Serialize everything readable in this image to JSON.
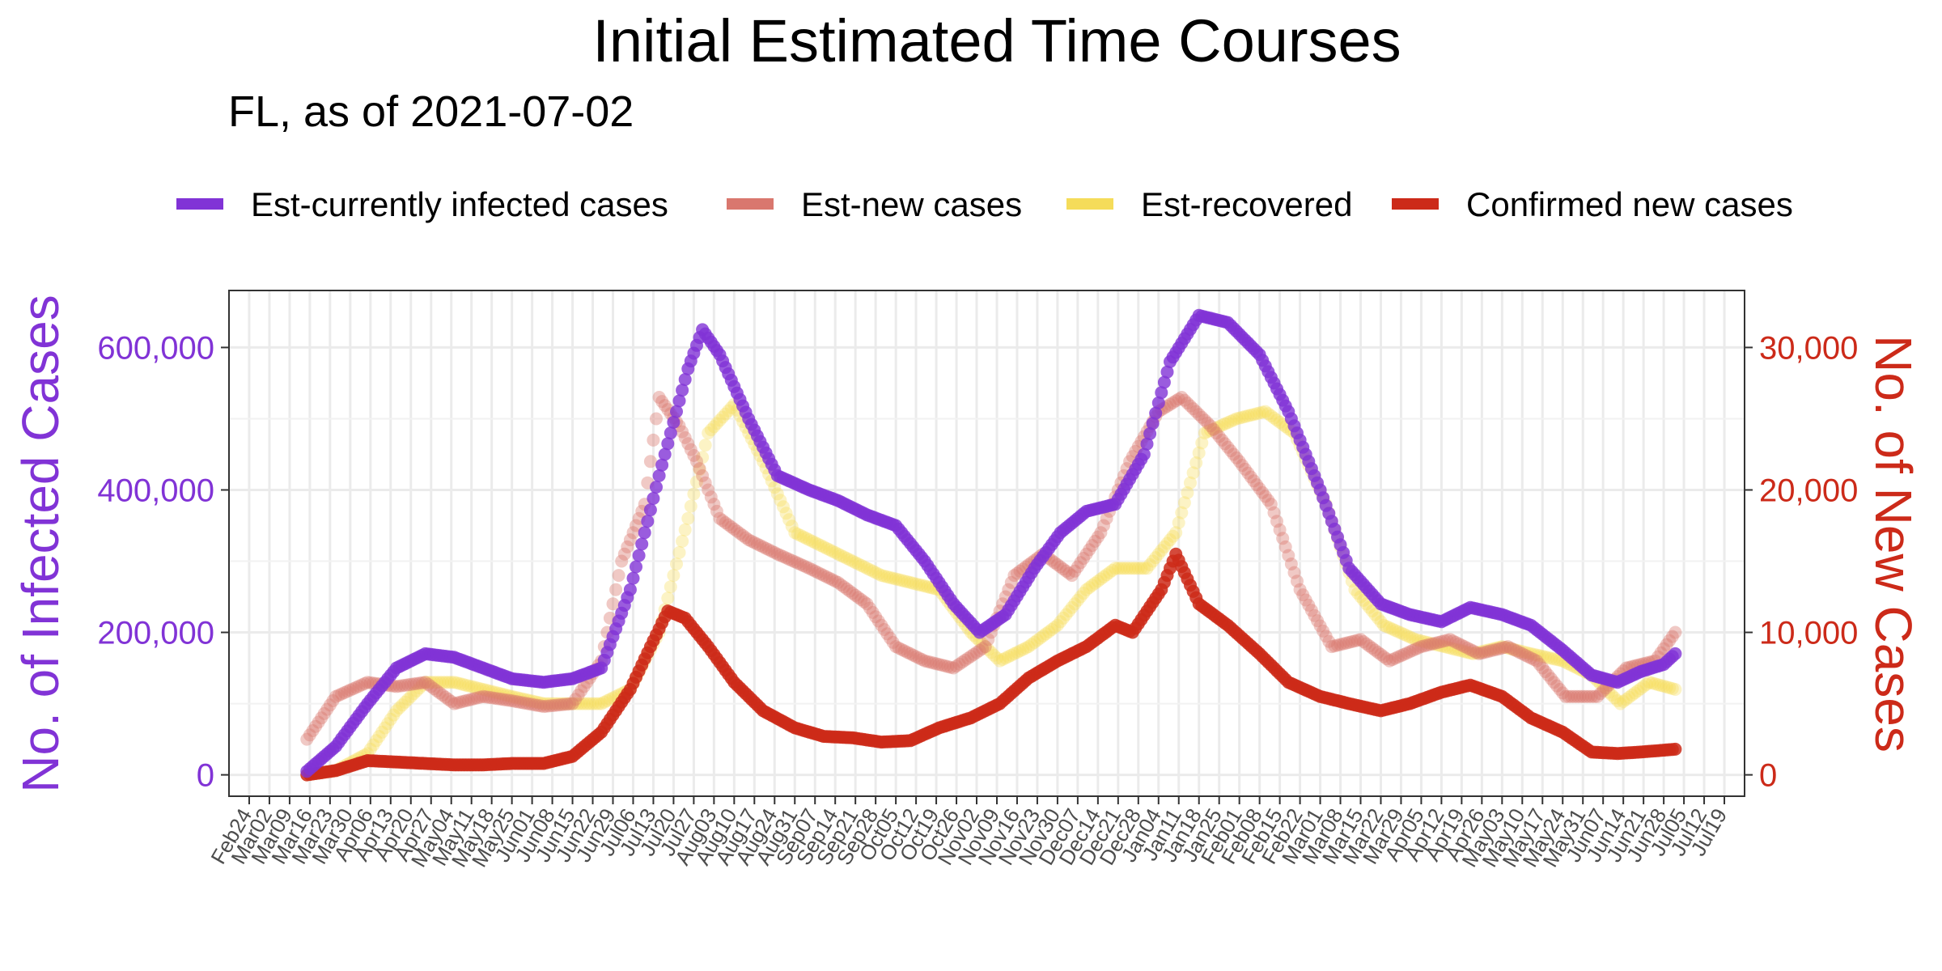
{
  "chart_data": {
    "type": "line",
    "title": "Initial Estimated Time Courses",
    "subtitle": "FL, as of 2021-07-02",
    "ylabel_left": "No. of Infected Cases",
    "ylabel_right": "No. of New Cases",
    "ylim_left": [
      -30000,
      680000
    ],
    "ylim_right": [
      -1500,
      34000
    ],
    "yticks_left": [
      {
        "value": 0,
        "label": "0"
      },
      {
        "value": 200000,
        "label": "200,000"
      },
      {
        "value": 400000,
        "label": "400,000"
      },
      {
        "value": 600000,
        "label": "600,000"
      }
    ],
    "yticks_right": [
      {
        "value": 0,
        "label": "0"
      },
      {
        "value": 10000,
        "label": "10,000"
      },
      {
        "value": 20000,
        "label": "20,000"
      },
      {
        "value": 30000,
        "label": "30,000"
      }
    ],
    "x_range": [
      "2020-02-17",
      "2021-07-26"
    ],
    "xtick_labels": [
      "Feb24",
      "Mar02",
      "Mar09",
      "Mar16",
      "Mar23",
      "Mar30",
      "Apr06",
      "Apr13",
      "Apr20",
      "Apr27",
      "May04",
      "May11",
      "May18",
      "May25",
      "Jun01",
      "Jun08",
      "Jun15",
      "Jun22",
      "Jun29",
      "Jul06",
      "Jul13",
      "Jul20",
      "Jul27",
      "Aug03",
      "Aug10",
      "Aug17",
      "Aug24",
      "Aug31",
      "Sep07",
      "Sep14",
      "Sep21",
      "Sep28",
      "Oct05",
      "Oct12",
      "Oct19",
      "Oct26",
      "Nov02",
      "Nov09",
      "Nov16",
      "Nov23",
      "Nov30",
      "Dec07",
      "Dec14",
      "Dec21",
      "Dec28",
      "Jan04",
      "Jan11",
      "Jan18",
      "Jan25",
      "Feb01",
      "Feb08",
      "Feb15",
      "Feb22",
      "Mar01",
      "Mar08",
      "Mar15",
      "Mar22",
      "Mar29",
      "Apr05",
      "Apr12",
      "Apr19",
      "Apr26",
      "May03",
      "May10",
      "May17",
      "May24",
      "May31",
      "Jun07",
      "Jun14",
      "Jun21",
      "Jun28",
      "Jul05",
      "Jul12",
      "Jul19"
    ],
    "xtick_dates_first": "2020-02-24",
    "xtick_dates_last": "2021-07-19",
    "grid": true,
    "legend_position": "top",
    "series": [
      {
        "name": "Est-currently infected cases",
        "axis": "left",
        "color": "#8133d6",
        "points": [
          [
            "2020-03-15",
            5000
          ],
          [
            "2020-03-25",
            40000
          ],
          [
            "2020-04-05",
            100000
          ],
          [
            "2020-04-15",
            150000
          ],
          [
            "2020-04-25",
            170000
          ],
          [
            "2020-05-05",
            165000
          ],
          [
            "2020-05-15",
            150000
          ],
          [
            "2020-05-25",
            135000
          ],
          [
            "2020-06-05",
            130000
          ],
          [
            "2020-06-15",
            135000
          ],
          [
            "2020-06-25",
            150000
          ],
          [
            "2020-07-05",
            260000
          ],
          [
            "2020-07-15",
            420000
          ],
          [
            "2020-07-25",
            570000
          ],
          [
            "2020-07-30",
            625000
          ],
          [
            "2020-08-05",
            590000
          ],
          [
            "2020-08-15",
            500000
          ],
          [
            "2020-08-25",
            420000
          ],
          [
            "2020-09-05",
            400000
          ],
          [
            "2020-09-15",
            385000
          ],
          [
            "2020-09-25",
            365000
          ],
          [
            "2020-10-05",
            350000
          ],
          [
            "2020-10-15",
            300000
          ],
          [
            "2020-10-25",
            240000
          ],
          [
            "2020-11-03",
            200000
          ],
          [
            "2020-11-12",
            225000
          ],
          [
            "2020-11-22",
            290000
          ],
          [
            "2020-12-01",
            340000
          ],
          [
            "2020-12-10",
            370000
          ],
          [
            "2020-12-20",
            380000
          ],
          [
            "2020-12-30",
            450000
          ],
          [
            "2021-01-08",
            580000
          ],
          [
            "2021-01-18",
            645000
          ],
          [
            "2021-01-28",
            635000
          ],
          [
            "2021-02-08",
            590000
          ],
          [
            "2021-02-18",
            510000
          ],
          [
            "2021-03-01",
            400000
          ],
          [
            "2021-03-11",
            290000
          ],
          [
            "2021-03-22",
            240000
          ],
          [
            "2021-04-01",
            225000
          ],
          [
            "2021-04-12",
            215000
          ],
          [
            "2021-04-22",
            235000
          ],
          [
            "2021-05-03",
            225000
          ],
          [
            "2021-05-13",
            210000
          ],
          [
            "2021-05-24",
            175000
          ],
          [
            "2021-06-03",
            140000
          ],
          [
            "2021-06-12",
            130000
          ],
          [
            "2021-06-20",
            145000
          ],
          [
            "2021-06-28",
            155000
          ],
          [
            "2021-07-02",
            170000
          ]
        ]
      },
      {
        "name": "Est-new cases",
        "axis": "right",
        "color": "#d9776e",
        "points": [
          [
            "2020-03-15",
            2500
          ],
          [
            "2020-03-25",
            5500
          ],
          [
            "2020-04-05",
            6500
          ],
          [
            "2020-04-15",
            6200
          ],
          [
            "2020-04-25",
            6500
          ],
          [
            "2020-05-05",
            5000
          ],
          [
            "2020-05-15",
            5500
          ],
          [
            "2020-05-25",
            5200
          ],
          [
            "2020-06-05",
            4800
          ],
          [
            "2020-06-15",
            5000
          ],
          [
            "2020-06-25",
            8000
          ],
          [
            "2020-07-02",
            15000
          ],
          [
            "2020-07-10",
            19000
          ],
          [
            "2020-07-15",
            26500
          ],
          [
            "2020-07-22",
            24500
          ],
          [
            "2020-07-28",
            22000
          ],
          [
            "2020-08-05",
            18000
          ],
          [
            "2020-08-15",
            16500
          ],
          [
            "2020-08-25",
            15500
          ],
          [
            "2020-09-05",
            14500
          ],
          [
            "2020-09-15",
            13500
          ],
          [
            "2020-09-25",
            12000
          ],
          [
            "2020-10-05",
            9000
          ],
          [
            "2020-10-15",
            8000
          ],
          [
            "2020-10-25",
            7500
          ],
          [
            "2020-11-05",
            9000
          ],
          [
            "2020-11-15",
            14000
          ],
          [
            "2020-11-25",
            15500
          ],
          [
            "2020-12-05",
            14000
          ],
          [
            "2020-12-15",
            17000
          ],
          [
            "2020-12-25",
            22000
          ],
          [
            "2021-01-04",
            25500
          ],
          [
            "2021-01-12",
            26500
          ],
          [
            "2021-01-22",
            24500
          ],
          [
            "2021-02-01",
            22000
          ],
          [
            "2021-02-12",
            19000
          ],
          [
            "2021-02-22",
            13000
          ],
          [
            "2021-03-05",
            9000
          ],
          [
            "2021-03-15",
            9500
          ],
          [
            "2021-03-25",
            8000
          ],
          [
            "2021-04-05",
            9000
          ],
          [
            "2021-04-15",
            9500
          ],
          [
            "2021-04-25",
            8500
          ],
          [
            "2021-05-05",
            9000
          ],
          [
            "2021-05-15",
            8000
          ],
          [
            "2021-05-25",
            5500
          ],
          [
            "2021-06-05",
            5500
          ],
          [
            "2021-06-15",
            7500
          ],
          [
            "2021-06-25",
            8000
          ],
          [
            "2021-07-02",
            10000
          ]
        ]
      },
      {
        "name": "Est-recovered",
        "axis": "right",
        "color": "#f5dc5a",
        "points": [
          [
            "2020-03-15",
            0
          ],
          [
            "2020-03-25",
            300
          ],
          [
            "2020-04-05",
            1500
          ],
          [
            "2020-04-15",
            4500
          ],
          [
            "2020-04-25",
            6500
          ],
          [
            "2020-05-05",
            6500
          ],
          [
            "2020-05-15",
            6000
          ],
          [
            "2020-05-25",
            5500
          ],
          [
            "2020-06-05",
            5000
          ],
          [
            "2020-06-15",
            5000
          ],
          [
            "2020-06-25",
            5000
          ],
          [
            "2020-07-05",
            6000
          ],
          [
            "2020-07-15",
            10000
          ],
          [
            "2020-07-25",
            18000
          ],
          [
            "2020-08-01",
            24000
          ],
          [
            "2020-08-10",
            26000
          ],
          [
            "2020-08-20",
            22000
          ],
          [
            "2020-08-31",
            17000
          ],
          [
            "2020-09-10",
            16000
          ],
          [
            "2020-09-20",
            15000
          ],
          [
            "2020-09-30",
            14000
          ],
          [
            "2020-10-10",
            13500
          ],
          [
            "2020-10-20",
            13000
          ],
          [
            "2020-10-31",
            10000
          ],
          [
            "2020-11-10",
            8000
          ],
          [
            "2020-11-20",
            9000
          ],
          [
            "2020-11-30",
            10500
          ],
          [
            "2020-12-10",
            13000
          ],
          [
            "2020-12-20",
            14500
          ],
          [
            "2020-12-31",
            14500
          ],
          [
            "2021-01-10",
            17000
          ],
          [
            "2021-01-20",
            24000
          ],
          [
            "2021-01-31",
            25000
          ],
          [
            "2021-02-10",
            25500
          ],
          [
            "2021-02-20",
            24000
          ],
          [
            "2021-03-03",
            19000
          ],
          [
            "2021-03-13",
            13000
          ],
          [
            "2021-03-23",
            10500
          ],
          [
            "2021-04-03",
            9500
          ],
          [
            "2021-04-13",
            9000
          ],
          [
            "2021-04-23",
            8500
          ],
          [
            "2021-05-03",
            9000
          ],
          [
            "2021-05-13",
            8500
          ],
          [
            "2021-05-24",
            8000
          ],
          [
            "2021-06-03",
            7000
          ],
          [
            "2021-06-13",
            5000
          ],
          [
            "2021-06-23",
            6500
          ],
          [
            "2021-07-02",
            6000
          ]
        ]
      },
      {
        "name": "Confirmed new cases",
        "axis": "right",
        "color": "#cc2a19",
        "points": [
          [
            "2020-03-15",
            0
          ],
          [
            "2020-03-25",
            300
          ],
          [
            "2020-04-05",
            1000
          ],
          [
            "2020-04-15",
            900
          ],
          [
            "2020-04-25",
            800
          ],
          [
            "2020-05-05",
            700
          ],
          [
            "2020-05-15",
            700
          ],
          [
            "2020-05-25",
            800
          ],
          [
            "2020-06-05",
            800
          ],
          [
            "2020-06-15",
            1300
          ],
          [
            "2020-06-25",
            3000
          ],
          [
            "2020-07-05",
            6000
          ],
          [
            "2020-07-12",
            9000
          ],
          [
            "2020-07-18",
            11500
          ],
          [
            "2020-07-24",
            11000
          ],
          [
            "2020-08-01",
            9000
          ],
          [
            "2020-08-10",
            6500
          ],
          [
            "2020-08-20",
            4500
          ],
          [
            "2020-08-31",
            3300
          ],
          [
            "2020-09-10",
            2700
          ],
          [
            "2020-09-20",
            2600
          ],
          [
            "2020-09-30",
            2300
          ],
          [
            "2020-10-10",
            2400
          ],
          [
            "2020-10-20",
            3300
          ],
          [
            "2020-10-31",
            4000
          ],
          [
            "2020-11-10",
            5000
          ],
          [
            "2020-11-20",
            6800
          ],
          [
            "2020-11-30",
            8000
          ],
          [
            "2020-12-10",
            9000
          ],
          [
            "2020-12-20",
            10500
          ],
          [
            "2020-12-26",
            10000
          ],
          [
            "2021-01-05",
            13000
          ],
          [
            "2021-01-10",
            15500
          ],
          [
            "2021-01-18",
            12000
          ],
          [
            "2021-01-28",
            10500
          ],
          [
            "2021-02-08",
            8500
          ],
          [
            "2021-02-18",
            6500
          ],
          [
            "2021-03-01",
            5500
          ],
          [
            "2021-03-11",
            5000
          ],
          [
            "2021-03-22",
            4500
          ],
          [
            "2021-04-01",
            5000
          ],
          [
            "2021-04-12",
            5800
          ],
          [
            "2021-04-22",
            6300
          ],
          [
            "2021-05-03",
            5500
          ],
          [
            "2021-05-13",
            4000
          ],
          [
            "2021-05-24",
            3000
          ],
          [
            "2021-06-03",
            1600
          ],
          [
            "2021-06-12",
            1500
          ],
          [
            "2021-06-20",
            1600
          ],
          [
            "2021-07-02",
            1800
          ]
        ]
      }
    ]
  }
}
